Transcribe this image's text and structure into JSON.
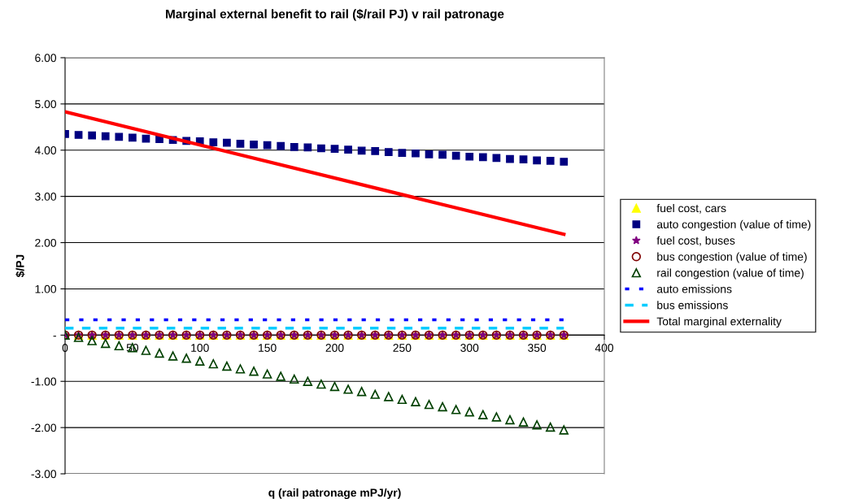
{
  "chart_data": {
    "type": "scatter",
    "title": "Marginal external benefit to rail ($/rail PJ) v rail patronage",
    "xlabel": "q (rail patronage mPJ/yr)",
    "ylabel": "$/PJ",
    "x": [
      0,
      10,
      20,
      30,
      40,
      50,
      60,
      70,
      80,
      90,
      100,
      110,
      120,
      130,
      140,
      150,
      160,
      170,
      180,
      190,
      200,
      210,
      220,
      230,
      240,
      250,
      260,
      270,
      280,
      290,
      300,
      310,
      320,
      330,
      340,
      350,
      360,
      370
    ],
    "series": [
      {
        "name": "fuel cost, cars",
        "color": "#ffff00",
        "marker": "triangle",
        "values": [
          0,
          0,
          0,
          0,
          0,
          0,
          0,
          0,
          0,
          0,
          0,
          0,
          0,
          0,
          0,
          0,
          0,
          0,
          0,
          0,
          0,
          0,
          0,
          0,
          0,
          0,
          0,
          0,
          0,
          0,
          0,
          0,
          0,
          0,
          0,
          0,
          0,
          0
        ]
      },
      {
        "name": "auto congestion (value of time)",
        "color": "#000080",
        "marker": "square",
        "values": [
          4.35,
          4.33,
          4.32,
          4.3,
          4.29,
          4.27,
          4.25,
          4.24,
          4.22,
          4.2,
          4.19,
          4.17,
          4.16,
          4.14,
          4.12,
          4.11,
          4.09,
          4.07,
          4.06,
          4.04,
          4.03,
          4.01,
          3.99,
          3.98,
          3.96,
          3.94,
          3.93,
          3.91,
          3.9,
          3.88,
          3.86,
          3.85,
          3.83,
          3.81,
          3.8,
          3.78,
          3.77,
          3.75
        ]
      },
      {
        "name": "fuel cost, buses",
        "color": "#800080",
        "marker": "star",
        "values": [
          0,
          0,
          0,
          0,
          0,
          0,
          0,
          0,
          0,
          0,
          0,
          0,
          0,
          0,
          0,
          0,
          0,
          0,
          0,
          0,
          0,
          0,
          0,
          0,
          0,
          0,
          0,
          0,
          0,
          0,
          0,
          0,
          0,
          0,
          0,
          0,
          0,
          0
        ]
      },
      {
        "name": "bus congestion (value of time)",
        "color": "#800000",
        "marker": "circle-open",
        "values": [
          0,
          0,
          0,
          0,
          0,
          0,
          0,
          0,
          0,
          0,
          0,
          0,
          0,
          0,
          0,
          0,
          0,
          0,
          0,
          0,
          0,
          0,
          0,
          0,
          0,
          0,
          0,
          0,
          0,
          0,
          0,
          0,
          0,
          0,
          0,
          0,
          0,
          0
        ]
      },
      {
        "name": "rail congestion (value of time)",
        "color": "#004000",
        "marker": "triangle-open",
        "values": [
          0,
          -0.05,
          -0.12,
          -0.18,
          -0.23,
          -0.27,
          -0.33,
          -0.39,
          -0.45,
          -0.5,
          -0.56,
          -0.62,
          -0.67,
          -0.73,
          -0.78,
          -0.84,
          -0.89,
          -0.95,
          -1.0,
          -1.06,
          -1.11,
          -1.17,
          -1.22,
          -1.28,
          -1.33,
          -1.39,
          -1.44,
          -1.5,
          -1.55,
          -1.61,
          -1.66,
          -1.72,
          -1.77,
          -1.83,
          -1.88,
          -1.94,
          -1.99,
          -2.05
        ]
      },
      {
        "name": "auto emissions",
        "color": "#0000ff",
        "type": "line",
        "marker": "none",
        "line_style": "dotted",
        "values": [
          0.33,
          0.33,
          0.33,
          0.33,
          0.33,
          0.33,
          0.33,
          0.33,
          0.33,
          0.33,
          0.33,
          0.33,
          0.33,
          0.33,
          0.33,
          0.33,
          0.33,
          0.33,
          0.33,
          0.33,
          0.33,
          0.33,
          0.33,
          0.33,
          0.33,
          0.33,
          0.33,
          0.33,
          0.33,
          0.33,
          0.33,
          0.33,
          0.33,
          0.33,
          0.33,
          0.33,
          0.33,
          0.33
        ]
      },
      {
        "name": "bus emissions",
        "color": "#00ccff",
        "type": "line",
        "marker": "none",
        "line_style": "dashed",
        "values": [
          0.15,
          0.15,
          0.15,
          0.15,
          0.15,
          0.15,
          0.15,
          0.15,
          0.15,
          0.15,
          0.15,
          0.15,
          0.15,
          0.15,
          0.15,
          0.15,
          0.15,
          0.15,
          0.15,
          0.15,
          0.15,
          0.15,
          0.15,
          0.15,
          0.15,
          0.15,
          0.15,
          0.15,
          0.15,
          0.15,
          0.15,
          0.15,
          0.15,
          0.15,
          0.15,
          0.15,
          0.15,
          0.15
        ]
      },
      {
        "name": "Total marginal externality",
        "color": "#ff0000",
        "type": "line",
        "marker": "none",
        "line_style": "solid",
        "x": [
          0,
          370
        ],
        "values": [
          4.83,
          2.18
        ]
      }
    ],
    "xlim": [
      0,
      400
    ],
    "xticks": [
      0,
      50,
      100,
      150,
      200,
      250,
      300,
      350,
      400
    ],
    "ylim": [
      -3,
      6
    ],
    "yticks": [
      {
        "value": -3,
        "label": "-3.00"
      },
      {
        "value": -2,
        "label": "-2.00"
      },
      {
        "value": -1,
        "label": "-1.00"
      },
      {
        "value": 0,
        "label": "-"
      },
      {
        "value": 1,
        "label": "1.00"
      },
      {
        "value": 2,
        "label": "2.00"
      },
      {
        "value": 3,
        "label": "3.00"
      },
      {
        "value": 4,
        "label": "4.00"
      },
      {
        "value": 5,
        "label": "5.00"
      },
      {
        "value": 6,
        "label": "6.00"
      }
    ],
    "grid": "y",
    "legend": "right"
  }
}
